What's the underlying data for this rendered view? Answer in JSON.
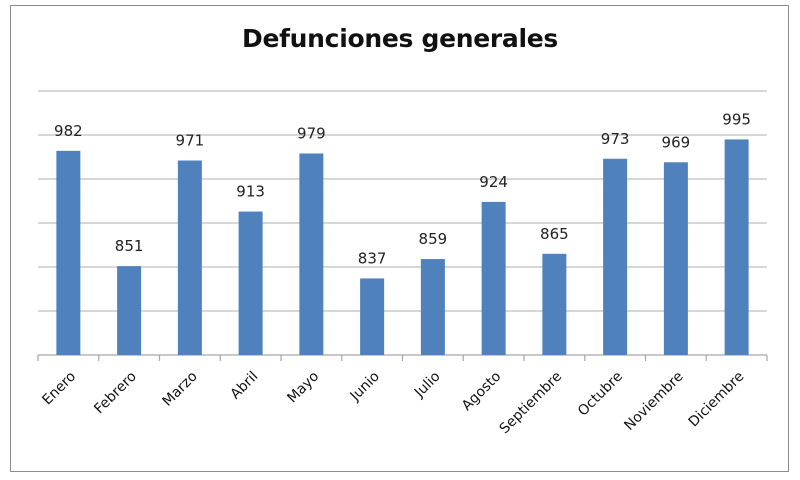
{
  "chart_data": {
    "type": "bar",
    "title": "Defunciones generales",
    "xlabel": "",
    "ylabel": "",
    "categories": [
      "Enero",
      "Febrero",
      "Marzo",
      "Abril",
      "Mayo",
      "Junio",
      "Julio",
      "Agosto",
      "Septiembre",
      "Octubre",
      "Noviembre",
      "Diciembre"
    ],
    "values": [
      982,
      851,
      971,
      913,
      979,
      837,
      859,
      924,
      865,
      973,
      969,
      995
    ],
    "ylim": [
      750,
      1050
    ],
    "ytick_step": 50,
    "y_tick_labels_visible": false,
    "grid": true,
    "legend": null,
    "data_labels": true,
    "bar_color": "#4f81bd",
    "gridline_color": "#bfbfbf"
  }
}
